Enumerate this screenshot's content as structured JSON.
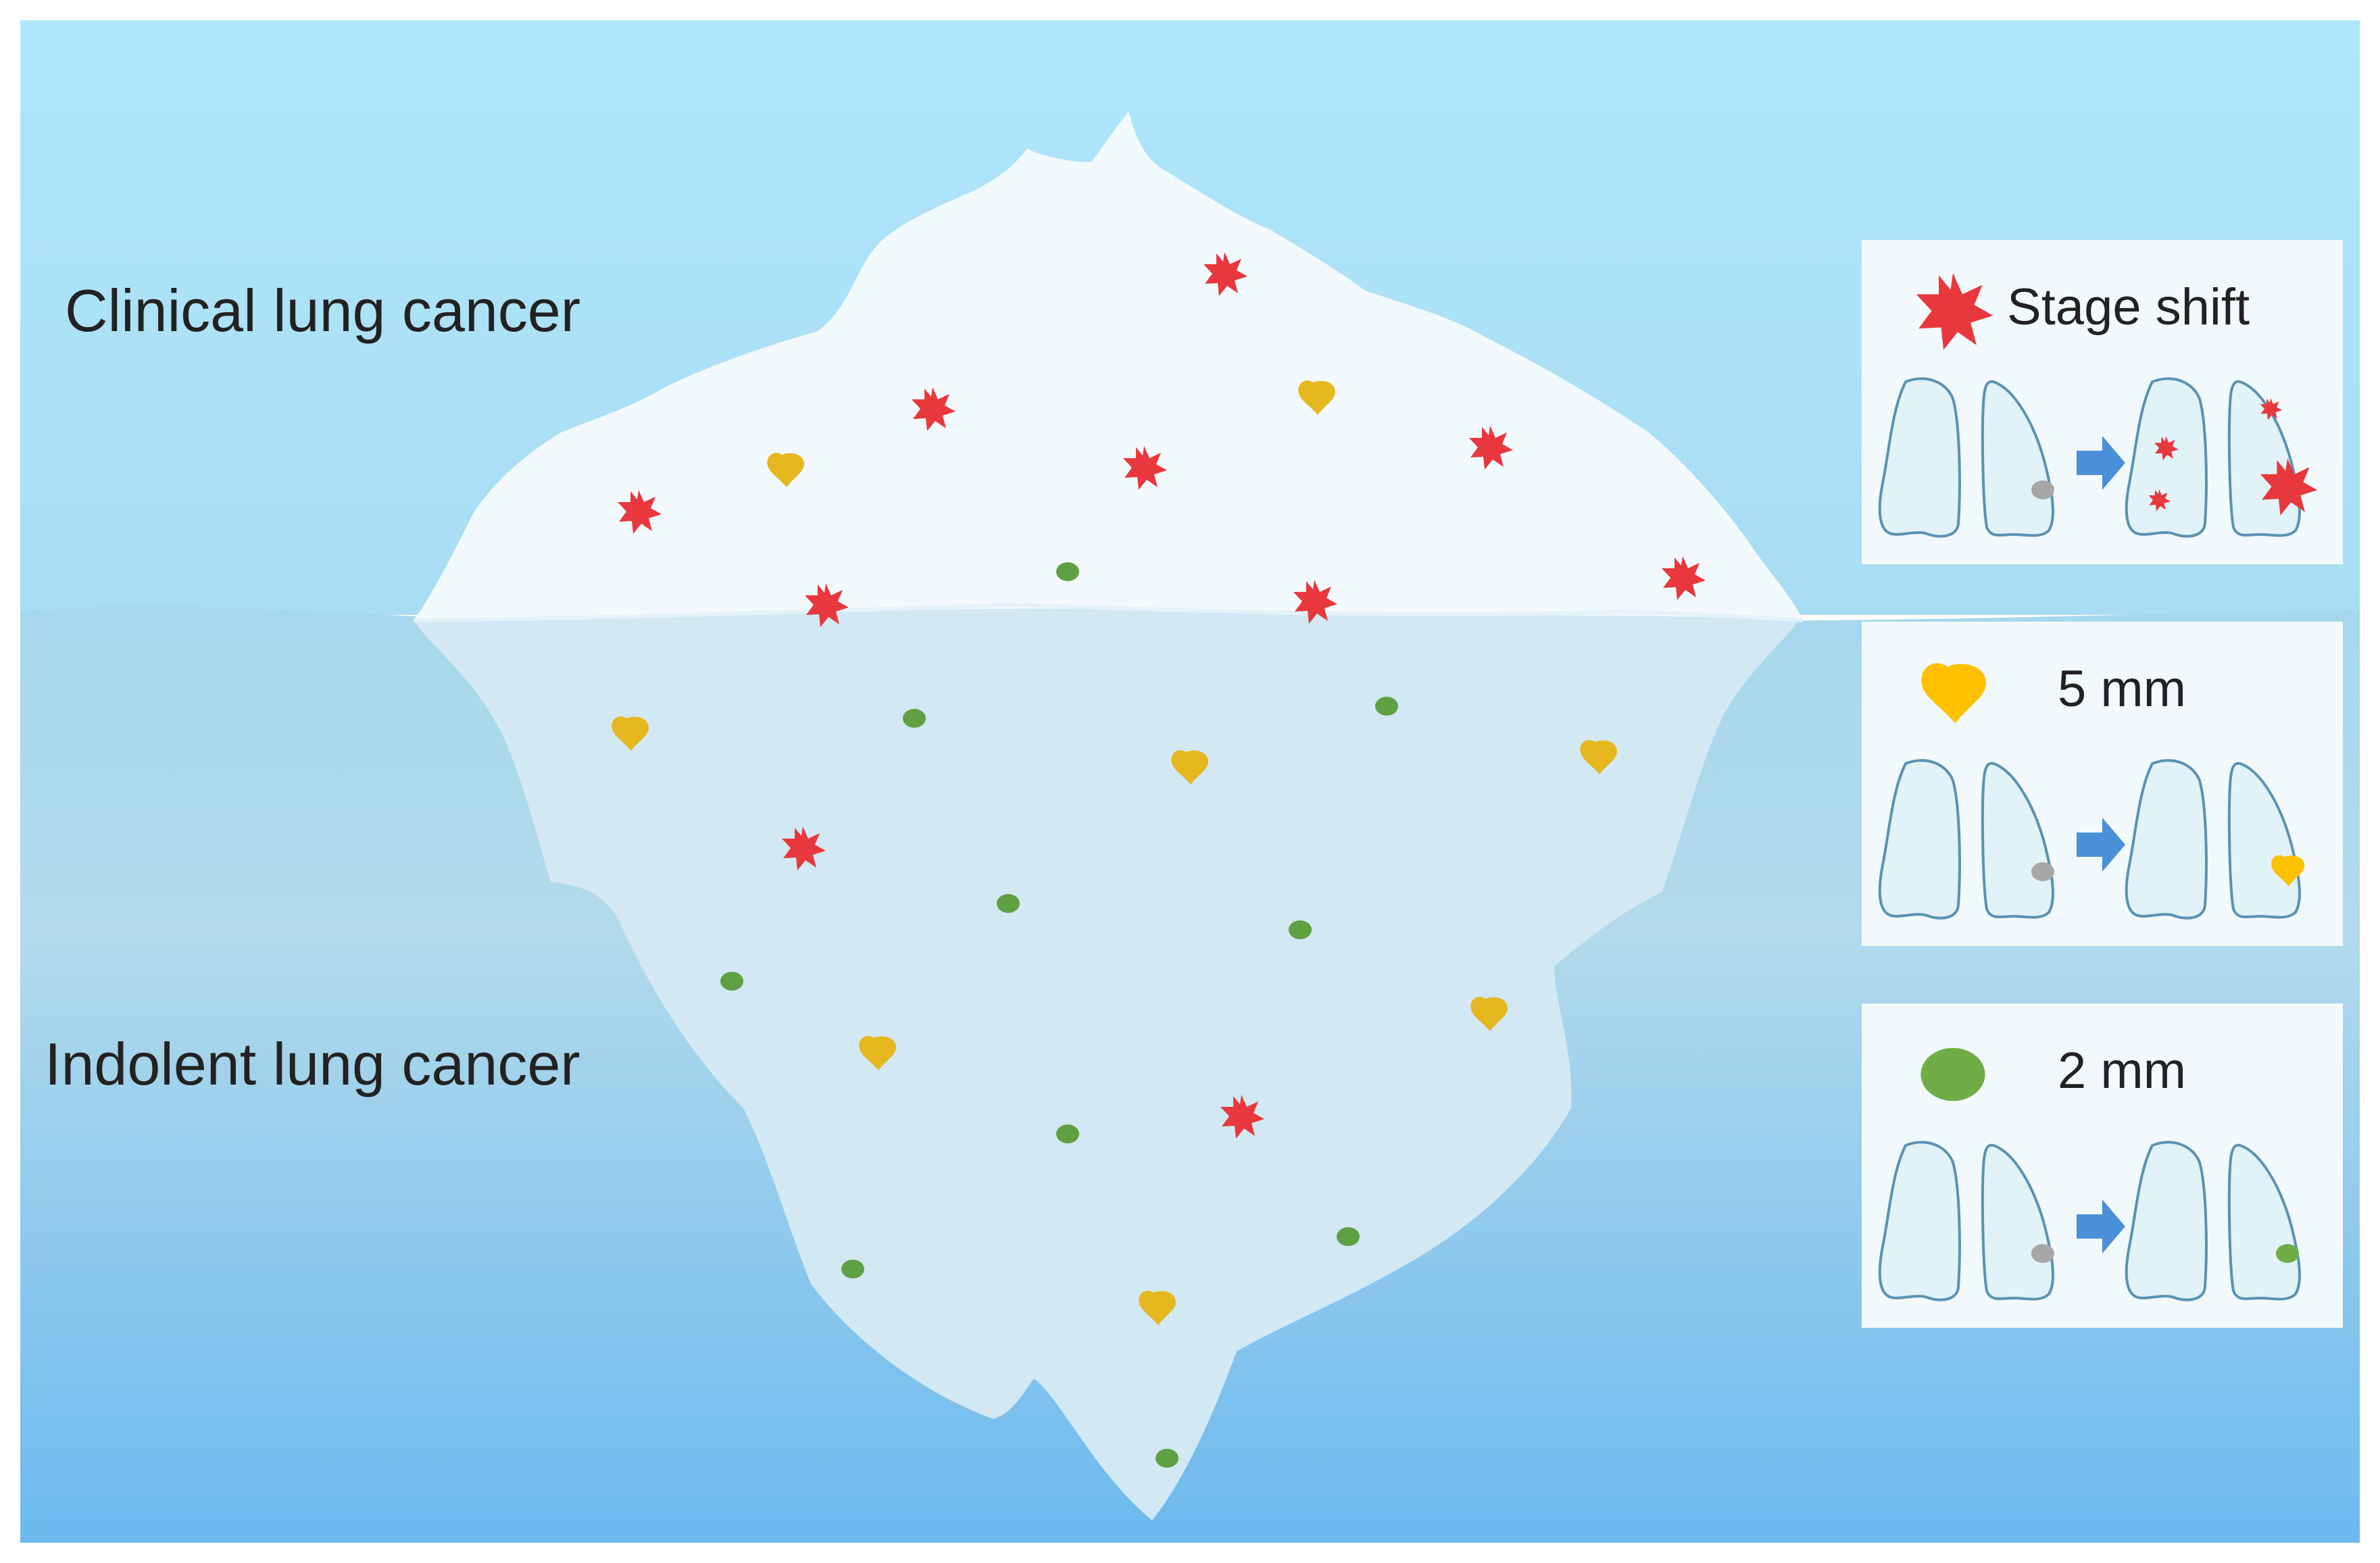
{
  "labels": {
    "clinical": "Clinical lung cancer",
    "indolent": "Indolent lung cancer"
  },
  "legend": [
    {
      "icon": "red-star-icon",
      "label": "Stage shift",
      "color": "#E8383D",
      "outcome": "spread"
    },
    {
      "icon": "yellow-nodule-icon",
      "label": "5 mm",
      "color": "#FFC000",
      "outcome": "grow"
    },
    {
      "icon": "green-nodule-icon",
      "label": "2 mm",
      "color": "#70AD47",
      "outcome": "same"
    }
  ],
  "colors": {
    "sky_top": "#AEE6FB",
    "water_top": "#A5D6EE",
    "water_bottom": "#6DB9EE",
    "ice_above": "#F2F9FD",
    "ice_below": "#D2E8F3",
    "lung_fill": "#E1F2F8",
    "lung_stroke": "#5A93B2",
    "arrow": "#4A90D9",
    "initial_nodule": "#A6A6A6",
    "star": "#E8383D",
    "yellow": "#E6B820",
    "green": "#5FA043"
  }
}
